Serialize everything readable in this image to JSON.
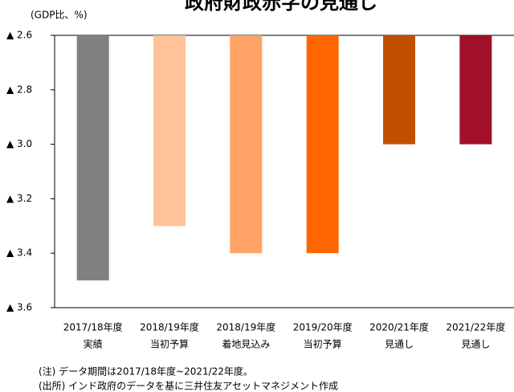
{
  "chart_data": {
    "type": "bar",
    "title": "政府財政赤字の見通し",
    "y_label": "(GDP比、%)",
    "categories": [
      [
        "2017/18年度",
        "実績"
      ],
      [
        "2018/19年度",
        "当初予算"
      ],
      [
        "2018/19年度",
        "着地見込み"
      ],
      [
        "2019/20年度",
        "当初予算"
      ],
      [
        "2020/21年度",
        "見通し"
      ],
      [
        "2021/22年度",
        "見通し"
      ]
    ],
    "values": [
      -3.5,
      -3.3,
      -3.4,
      -3.4,
      -3.0,
      -3.0
    ],
    "colors": [
      "#808080",
      "#ffc299",
      "#ffa366",
      "#ff6600",
      "#c05000",
      "#a0102a"
    ],
    "ylim": [
      -3.6,
      -2.6
    ],
    "yticks": [
      {
        "value": -2.6,
        "label": "▲ 2.6"
      },
      {
        "value": -2.8,
        "label": "▲ 2.8"
      },
      {
        "value": -3.0,
        "label": "▲ 3.0"
      },
      {
        "value": -3.2,
        "label": "▲ 3.2"
      },
      {
        "value": -3.4,
        "label": "▲ 3.4"
      },
      {
        "value": -3.6,
        "label": "▲ 3.6"
      }
    ],
    "grid": false,
    "notes": [
      "(注) データ期間は2017/18年度~2021/22年度。",
      "(出所) インド政府のデータを基に三井住友アセットマネジメント作成"
    ]
  }
}
